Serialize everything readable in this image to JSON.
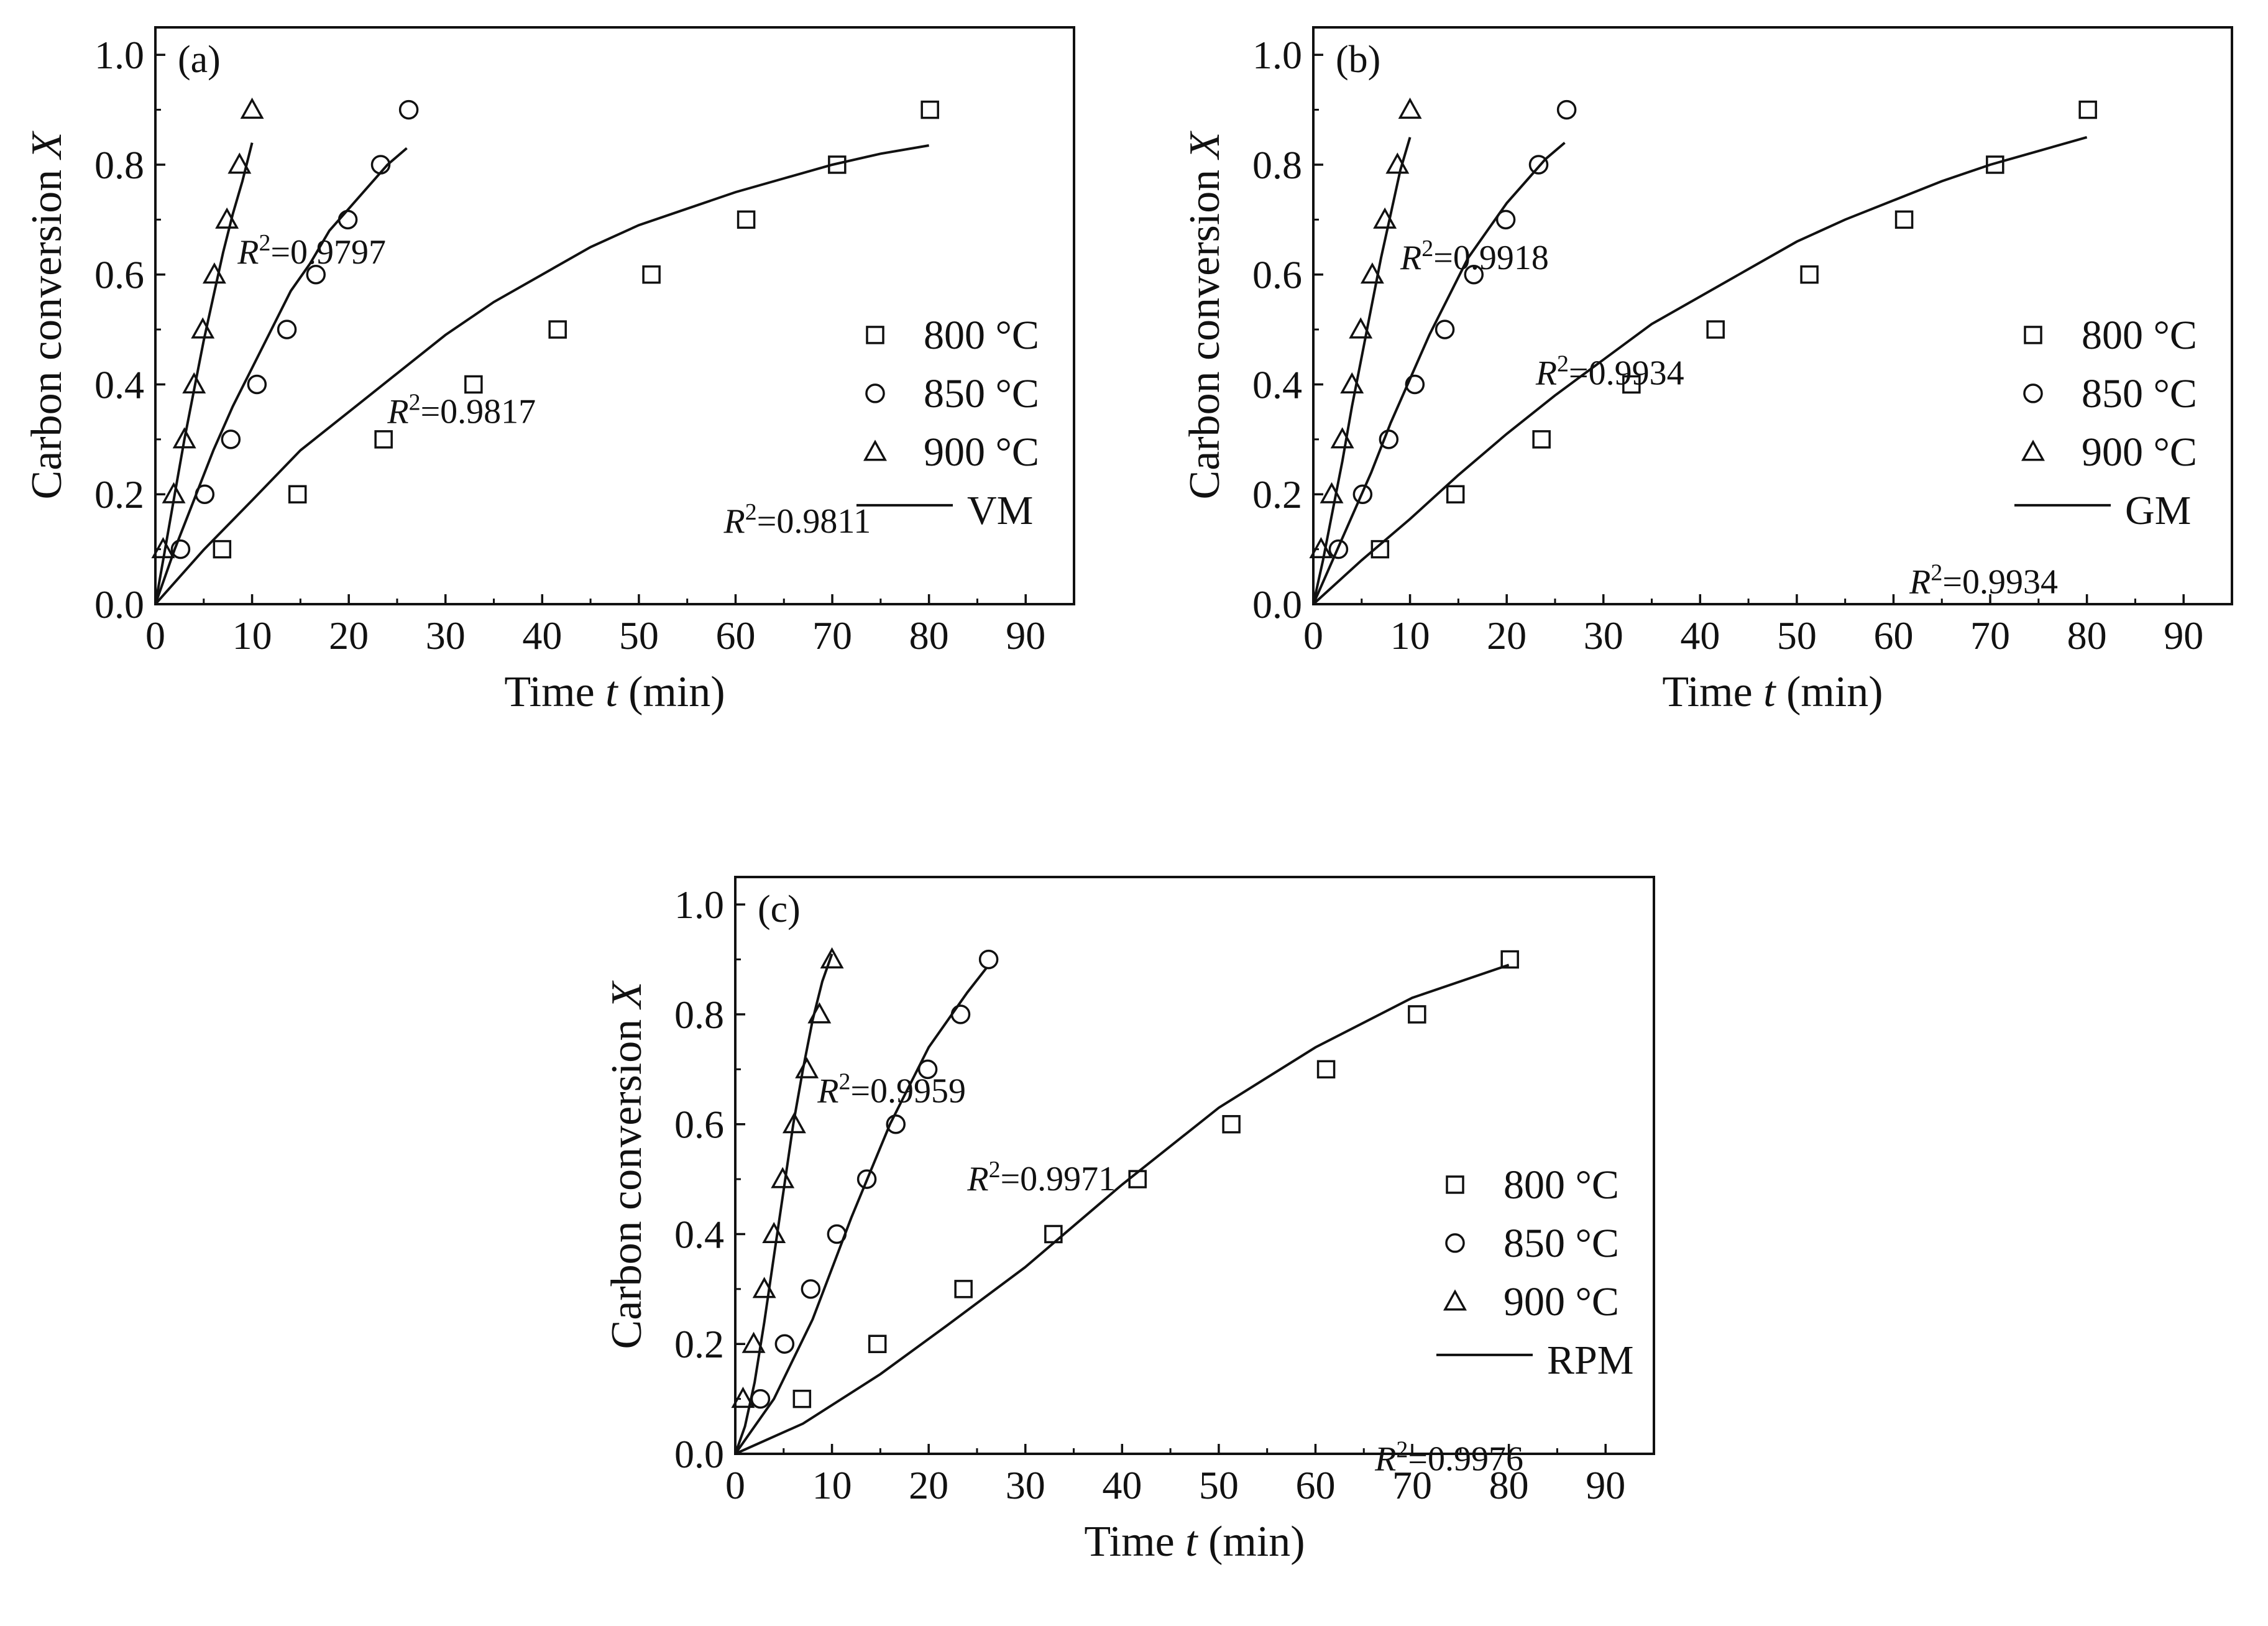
{
  "figure": {
    "panels": [
      "a",
      "b",
      "c"
    ]
  },
  "chart_data": [
    {
      "type": "scatter",
      "panel_label": "(a)",
      "model_name": "VM",
      "xlabel_prefix": "Time ",
      "xlabel_var": "t",
      "xlabel_suffix": " (min)",
      "ylabel_prefix": "Carbon conversion ",
      "ylabel_var": "X",
      "xlim": [
        0,
        95
      ],
      "ylim": [
        0,
        1.05
      ],
      "xticks": [
        0,
        10,
        20,
        30,
        40,
        50,
        60,
        70,
        80,
        90
      ],
      "yticks": [
        "0.0",
        "0.2",
        "0.4",
        "0.6",
        "0.8",
        "1.0"
      ],
      "series": [
        {
          "name": "800 °C",
          "marker": "square",
          "r2": "=0.9811",
          "r2_anchor": "end",
          "r2_offset": [
            -6,
            0.13
          ],
          "x": [
            6.9,
            14.7,
            23.6,
            32.9,
            41.6,
            51.3,
            61.1,
            70.5,
            80.1
          ],
          "y": [
            0.1,
            0.2,
            0.3,
            0.4,
            0.5,
            0.6,
            0.7,
            0.8,
            0.9
          ],
          "fit_x": [
            0,
            5,
            10,
            15,
            20,
            25,
            30,
            35,
            40,
            45,
            50,
            55,
            60,
            65,
            70,
            75,
            80
          ],
          "fit_y": [
            0,
            0.099,
            0.189,
            0.28,
            0.35,
            0.42,
            0.49,
            0.55,
            0.6,
            0.65,
            0.69,
            0.72,
            0.75,
            0.775,
            0.8,
            0.82,
            0.835
          ]
        },
        {
          "name": "850 °C",
          "marker": "circle",
          "r2": "=0.9817",
          "r2_anchor": "start",
          "r2_offset": [
            -2,
            0.33
          ],
          "x": [
            2.6,
            5.1,
            7.8,
            10.5,
            13.6,
            16.6,
            19.9,
            23.3,
            26.2
          ],
          "y": [
            0.1,
            0.2,
            0.3,
            0.4,
            0.5,
            0.6,
            0.7,
            0.8,
            0.9
          ],
          "fit_x": [
            0,
            2,
            4,
            6,
            8,
            10,
            12,
            14,
            16,
            18,
            20,
            22,
            24,
            26
          ],
          "fit_y": [
            0,
            0.1,
            0.19,
            0.28,
            0.36,
            0.43,
            0.5,
            0.57,
            0.62,
            0.68,
            0.72,
            0.76,
            0.8,
            0.83
          ]
        },
        {
          "name": "900 °C",
          "marker": "triangle",
          "r2": "=0.9797",
          "r2_anchor": "start",
          "r2_offset": [
            -1.5,
            0.62
          ],
          "x": [
            0.8,
            1.9,
            3.0,
            4.0,
            4.9,
            6.1,
            7.4,
            8.7,
            10.0
          ],
          "y": [
            0.1,
            0.2,
            0.3,
            0.4,
            0.5,
            0.6,
            0.7,
            0.8,
            0.9
          ],
          "fit_x": [
            0,
            1,
            2,
            3,
            4,
            5,
            6,
            7,
            8,
            9,
            10
          ],
          "fit_y": [
            0,
            0.1,
            0.2,
            0.3,
            0.39,
            0.48,
            0.56,
            0.64,
            0.71,
            0.77,
            0.84
          ]
        }
      ],
      "legend": [
        "800 °C",
        "850 °C",
        "900 °C",
        "VM"
      ],
      "legend_position": "right"
    },
    {
      "type": "scatter",
      "panel_label": "(b)",
      "model_name": "GM",
      "xlabel_prefix": "Time ",
      "xlabel_var": "t",
      "xlabel_suffix": " (min)",
      "ylabel_prefix": "Carbon conversion ",
      "ylabel_var": "X",
      "xlim": [
        0,
        95
      ],
      "ylim": [
        0,
        1.05
      ],
      "xticks": [
        0,
        10,
        20,
        30,
        40,
        50,
        60,
        70,
        80,
        90
      ],
      "yticks": [
        "0.0",
        "0.2",
        "0.4",
        "0.6",
        "0.8",
        "1.0"
      ],
      "series": [
        {
          "name": "800 °C",
          "marker": "square",
          "r2": "=0.9934",
          "r2_anchor": "end",
          "r2_offset": [
            -3,
            0.02
          ],
          "x": [
            6.9,
            14.7,
            23.6,
            32.9,
            41.6,
            51.3,
            61.1,
            70.5,
            80.1
          ],
          "y": [
            0.1,
            0.2,
            0.3,
            0.4,
            0.5,
            0.6,
            0.7,
            0.8,
            0.9
          ],
          "fit_x": [
            0,
            5,
            10,
            15,
            20,
            25,
            30,
            35,
            40,
            45,
            50,
            55,
            60,
            65,
            70,
            75,
            80
          ],
          "fit_y": [
            0,
            0.08,
            0.155,
            0.235,
            0.31,
            0.38,
            0.445,
            0.51,
            0.56,
            0.61,
            0.66,
            0.7,
            0.735,
            0.77,
            0.8,
            0.825,
            0.85
          ]
        },
        {
          "name": "850 °C",
          "marker": "circle",
          "r2": "=0.9934",
          "r2_anchor": "start",
          "r2_offset": [
            -3,
            0.4
          ],
          "x": [
            2.6,
            5.1,
            7.8,
            10.5,
            13.6,
            16.6,
            19.9,
            23.3,
            26.2
          ],
          "y": [
            0.1,
            0.2,
            0.3,
            0.4,
            0.5,
            0.6,
            0.7,
            0.8,
            0.9
          ],
          "fit_x": [
            0,
            2,
            4,
            6,
            8,
            10,
            12,
            14,
            16,
            18,
            20,
            22,
            24,
            26
          ],
          "fit_y": [
            0,
            0.08,
            0.16,
            0.24,
            0.33,
            0.41,
            0.49,
            0.56,
            0.63,
            0.68,
            0.73,
            0.77,
            0.81,
            0.84
          ]
        },
        {
          "name": "900 °C",
          "marker": "triangle",
          "r2": "=0.9918",
          "r2_anchor": "start",
          "r2_offset": [
            -1,
            0.61
          ],
          "x": [
            0.8,
            1.9,
            3.0,
            4.0,
            4.9,
            6.1,
            7.4,
            8.7,
            10.0
          ],
          "y": [
            0.1,
            0.2,
            0.3,
            0.4,
            0.5,
            0.6,
            0.7,
            0.8,
            0.9
          ],
          "fit_x": [
            0,
            1,
            2,
            3,
            4,
            5,
            6,
            7,
            8,
            9,
            10
          ],
          "fit_y": [
            0,
            0.08,
            0.17,
            0.26,
            0.36,
            0.45,
            0.54,
            0.63,
            0.71,
            0.79,
            0.85
          ]
        }
      ],
      "legend": [
        "800 °C",
        "850 °C",
        "900 °C",
        "GM"
      ],
      "legend_position": "right"
    },
    {
      "type": "scatter",
      "panel_label": "(c)",
      "model_name": "RPM",
      "xlabel_prefix": "Time ",
      "xlabel_var": "t",
      "xlabel_suffix": " (min)",
      "ylabel_prefix": "Carbon conversion ",
      "ylabel_var": "X",
      "xlim": [
        0,
        95
      ],
      "ylim": [
        0,
        1.05
      ],
      "xticks": [
        0,
        10,
        20,
        30,
        40,
        50,
        60,
        70,
        80,
        90
      ],
      "yticks": [
        "0.0",
        "0.2",
        "0.4",
        "0.6",
        "0.8",
        "1.0"
      ],
      "series": [
        {
          "name": "800 °C",
          "marker": "square",
          "r2": "=0.9976",
          "r2_anchor": "end",
          "r2_offset": [
            1.5,
            -0.03
          ],
          "x": [
            6.9,
            14.7,
            23.6,
            32.9,
            41.6,
            51.3,
            61.1,
            70.5,
            80.1
          ],
          "y": [
            0.1,
            0.2,
            0.3,
            0.4,
            0.5,
            0.6,
            0.7,
            0.8,
            0.9
          ],
          "fit_x": [
            0,
            7,
            15,
            22,
            30,
            40,
            50,
            60,
            70,
            80
          ],
          "fit_y": [
            0,
            0.055,
            0.145,
            0.235,
            0.34,
            0.49,
            0.63,
            0.74,
            0.83,
            0.89
          ]
        },
        {
          "name": "850 °C",
          "marker": "circle",
          "r2": "=0.9971",
          "r2_anchor": "start",
          "r2_offset": [
            -2,
            0.48
          ],
          "x": [
            2.6,
            5.1,
            7.8,
            10.5,
            13.6,
            16.6,
            19.9,
            23.3,
            26.2
          ],
          "y": [
            0.1,
            0.2,
            0.3,
            0.4,
            0.5,
            0.6,
            0.7,
            0.8,
            0.9
          ],
          "fit_x": [
            0,
            4,
            8,
            12,
            16,
            20,
            24,
            26
          ],
          "fit_y": [
            0,
            0.1,
            0.245,
            0.43,
            0.6,
            0.74,
            0.84,
            0.885
          ]
        },
        {
          "name": "900 °C",
          "marker": "triangle",
          "r2": "=0.9959",
          "r2_anchor": "start",
          "r2_offset": [
            -1.5,
            0.64
          ],
          "x": [
            0.8,
            1.9,
            3.0,
            4.0,
            4.9,
            6.1,
            7.4,
            8.7,
            10.0
          ],
          "y": [
            0.1,
            0.2,
            0.3,
            0.4,
            0.5,
            0.6,
            0.7,
            0.8,
            0.9
          ],
          "fit_x": [
            0,
            1,
            2,
            3,
            4,
            5,
            6,
            7,
            8,
            9,
            10
          ],
          "fit_y": [
            0,
            0.05,
            0.13,
            0.24,
            0.36,
            0.48,
            0.6,
            0.7,
            0.79,
            0.86,
            0.91
          ]
        }
      ],
      "legend": [
        "800 °C",
        "850 °C",
        "900 °C",
        "RPM"
      ],
      "legend_position": "right"
    }
  ]
}
